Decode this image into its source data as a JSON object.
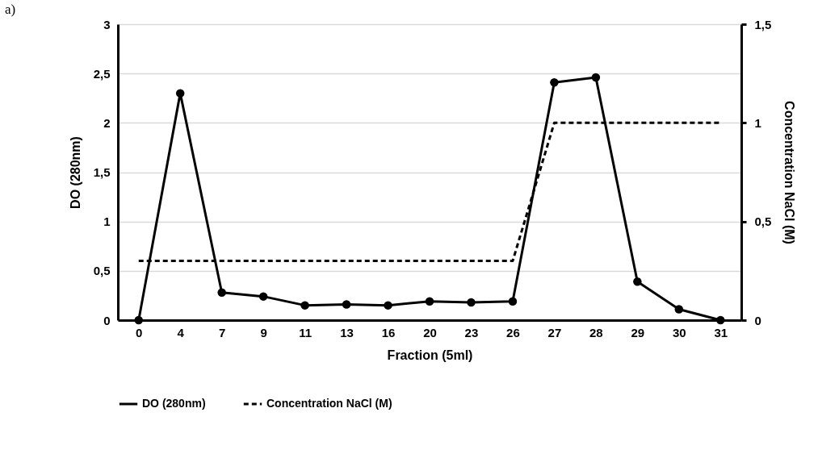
{
  "chart_data": {
    "type": "line",
    "xlabel": "Fraction (5ml)",
    "ylabel": "DO (280nm)",
    "y2label": "Concentration NaCl (M)",
    "annotations": [
      "a)"
    ],
    "categories": [
      "0",
      "4",
      "7",
      "9",
      "11",
      "13",
      "16",
      "20",
      "23",
      "26",
      "27",
      "28",
      "29",
      "30",
      "31"
    ],
    "series": [
      {
        "name": "DO (280nm)",
        "color": "#000000",
        "marker": "circle",
        "line_style": "solid",
        "values": [
          0,
          2.3,
          0.28,
          0.24,
          0.15,
          0.16,
          0.15,
          0.19,
          0.18,
          0.19,
          2.41,
          2.46,
          0.39,
          0.11,
          0
        ]
      },
      {
        "name": "Concentration NaCl (M)",
        "color": "#000000",
        "marker": "none",
        "line_style": "dashed",
        "axis": "y2",
        "values": [
          0.3,
          0.3,
          0.3,
          0.3,
          0.3,
          0.3,
          0.3,
          0.3,
          0.3,
          0.3,
          1,
          1,
          1,
          1,
          1
        ]
      }
    ],
    "ylim": [
      0,
      3
    ],
    "yticks": [
      0,
      {
        "value": 0.5,
        "label": "0,5"
      },
      1,
      {
        "value": 1.5,
        "label": "1,5"
      },
      2,
      {
        "value": 2.5,
        "label": "2,5"
      },
      3
    ],
    "y2lim": [
      0,
      1.5
    ],
    "y2ticks": [
      0,
      {
        "value": 0.5,
        "label": "0,5"
      },
      1,
      {
        "value": 1.5,
        "label": "1,5"
      }
    ],
    "grid": "y",
    "legend": "bottom"
  }
}
